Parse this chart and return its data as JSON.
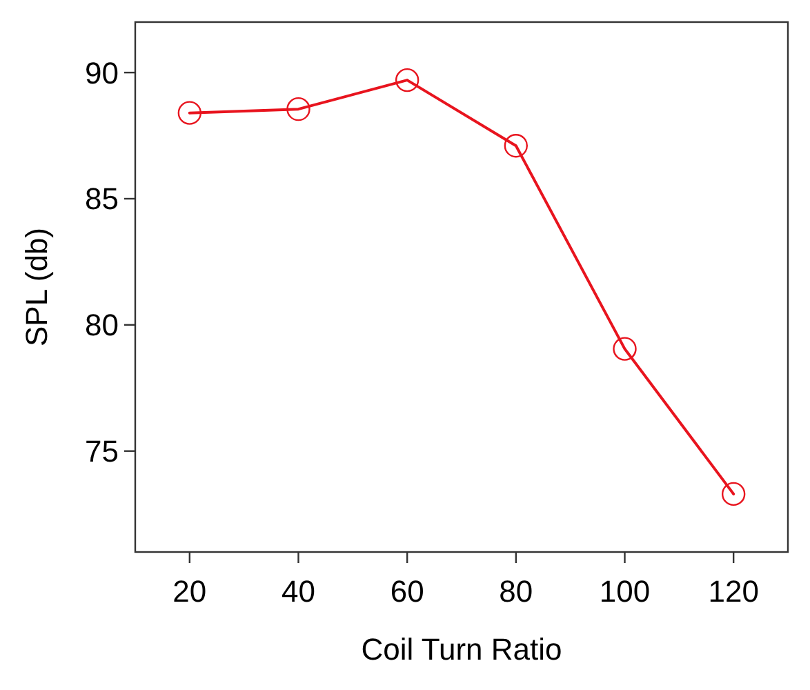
{
  "chart_data": {
    "type": "line",
    "xlabel": "Coil Turn Ratio",
    "ylabel": "SPL (db)",
    "x": [
      20,
      40,
      60,
      80,
      100,
      120
    ],
    "series": [
      {
        "color": "#e8141e",
        "values": [
          88.4,
          88.55,
          89.7,
          87.1,
          79.05,
          73.3
        ]
      }
    ],
    "xlim": [
      10,
      130
    ],
    "ylim": [
      71,
      92
    ],
    "xticks": [
      20,
      40,
      60,
      80,
      100,
      120
    ],
    "yticks": [
      75,
      80,
      85,
      90
    ],
    "marker": "circle",
    "line_style": "solid"
  }
}
